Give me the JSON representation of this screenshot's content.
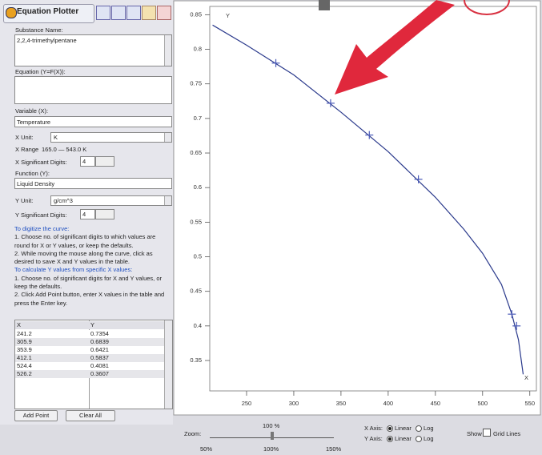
{
  "toolbar": {
    "title": "Equation Plotter"
  },
  "form": {
    "substance_label": "Substance Name:",
    "substance": "2,2,4-trimethylpentane",
    "equation_label": "Equation (Y=F(X)):",
    "variable_label": "Variable (X):",
    "variable": "Temperature",
    "x_unit_label": "X Unit:",
    "x_unit": "K",
    "x_range_label": "X Range",
    "x_range": "165.0 — 543.0 K",
    "x_digits_label": "X Significant Digits:",
    "x_digits": "4",
    "function_label": "Function (Y):",
    "function": "Liquid Density",
    "y_unit_label": "Y Unit:",
    "y_unit": "g/cm^3",
    "y_digits_label": "Y Significant Digits:",
    "y_digits": "4"
  },
  "instructions": [
    {
      "heading": "To digitize the curve:",
      "steps": [
        "1. Choose no. of significant digits to which values are round for X or Y values, or keep the defaults.",
        "2. While moving the mouse along the curve, click as desired to save X and Y values in the table."
      ]
    },
    {
      "heading": "To calculate Y values from specific X values:",
      "steps": [
        "1. Choose no. of significant digits for X and Y values, or keep the defaults.",
        "2. Click Add Point button, enter X values in the table and press the Enter key."
      ]
    }
  ],
  "table": {
    "header": [
      "X",
      "Y"
    ],
    "rows": [
      [
        "241.2",
        "0.7354"
      ],
      [
        "305.9",
        "0.6839"
      ],
      [
        "353.9",
        "0.6421"
      ],
      [
        "412.1",
        "0.5837"
      ],
      [
        "524.4",
        "0.4081"
      ],
      [
        "526.2",
        "0.3607"
      ]
    ]
  },
  "buttons": [
    "Add Point",
    "Clear All"
  ],
  "zoom": {
    "label": "Zoom:",
    "value": "100 %",
    "ticks": [
      "50%",
      "100%",
      "150%"
    ]
  },
  "axis_options": [
    {
      "label": "X Axis:",
      "options": [
        "Linear",
        "Log"
      ],
      "selected": 0
    },
    {
      "label": "Y Axis:",
      "options": [
        "Linear",
        "Log"
      ],
      "selected": 0
    }
  ],
  "grid_option": {
    "label": "Show",
    "option": "Grid Lines",
    "checked": false
  },
  "chart_data": {
    "type": "line",
    "x_axis_label": "X",
    "y_axis_label": "Y",
    "x": [
      214,
      250,
      300,
      350,
      400,
      450,
      480,
      500,
      520,
      531,
      538,
      543
    ],
    "series": [
      {
        "color": "#2b3a8c",
        "values": [
          0.835,
          0.806,
          0.763,
          0.709,
          0.652,
          0.586,
          0.54,
          0.505,
          0.46,
          0.417,
          0.38,
          0.33
        ]
      }
    ],
    "markers": {
      "color": "#4a5ab8",
      "x": [
        281,
        339,
        380,
        432,
        531,
        536
      ],
      "values": [
        0.78,
        0.722,
        0.676,
        0.612,
        0.417,
        0.4
      ]
    },
    "xlim": [
      211,
      557
    ],
    "ylim": [
      0.306,
      0.862
    ],
    "xticks": [
      250,
      300,
      350,
      400,
      450,
      500,
      550
    ],
    "yticks": [
      0.35,
      0.4,
      0.45,
      0.5,
      0.55,
      0.6,
      0.65,
      0.7,
      0.75,
      0.8,
      0.85
    ]
  }
}
